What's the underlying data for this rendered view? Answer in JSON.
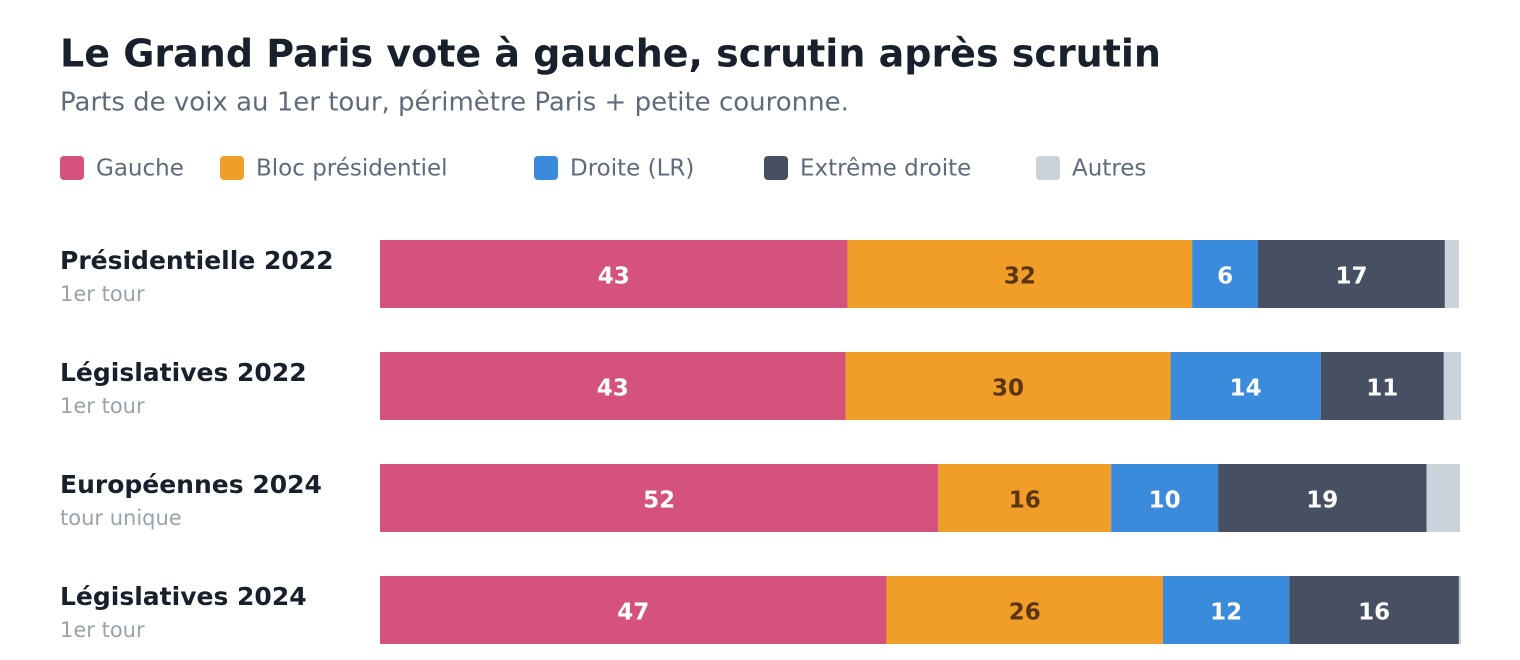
{
  "chart_data": {
    "type": "stacked-bar-horizontal",
    "title": "Le Grand Paris vote à gauche, scrutin après scrutin",
    "subtitle": "Parts de voix au 1er tour, périmètre Paris + petite couronne.",
    "categories": [
      "Présidentielle 2022",
      "Législatives 2022",
      "Européennes 2024",
      "Législatives 2024"
    ],
    "subcategories": [
      "1er tour",
      "1er tour",
      "tour unique",
      "1er tour"
    ],
    "xlim": [
      0,
      100
    ],
    "series": [
      {
        "name": "Gauche",
        "color": "#d4527c",
        "label_color": "#ffffff",
        "values": [
          43.3,
          43.1,
          51.7,
          46.9
        ],
        "value_labels": [
          "43",
          "43",
          "52",
          "47"
        ]
      },
      {
        "name": "Bloc présidentiel",
        "color": "#f09e28",
        "label_color": "#5a3510",
        "values": [
          31.9,
          30.1,
          16.0,
          25.6
        ],
        "value_labels": [
          "32",
          "30",
          "16",
          "26"
        ]
      },
      {
        "name": "Droite (LR)",
        "color": "#3a8bdc",
        "label_color": "#ffffff",
        "values": [
          6.1,
          13.9,
          9.9,
          11.7
        ],
        "value_labels": [
          "6",
          "14",
          "10",
          "12"
        ]
      },
      {
        "name": "Extrême droite",
        "color": "#475062",
        "label_color": "#ffffff",
        "values": [
          17.3,
          11.4,
          19.3,
          15.7
        ],
        "value_labels": [
          "17",
          "11",
          "19",
          "16"
        ]
      },
      {
        "name": "Autres",
        "color": "#cbd2da",
        "values": [
          1.3,
          1.6,
          3.1,
          0.2
        ]
      }
    ]
  }
}
